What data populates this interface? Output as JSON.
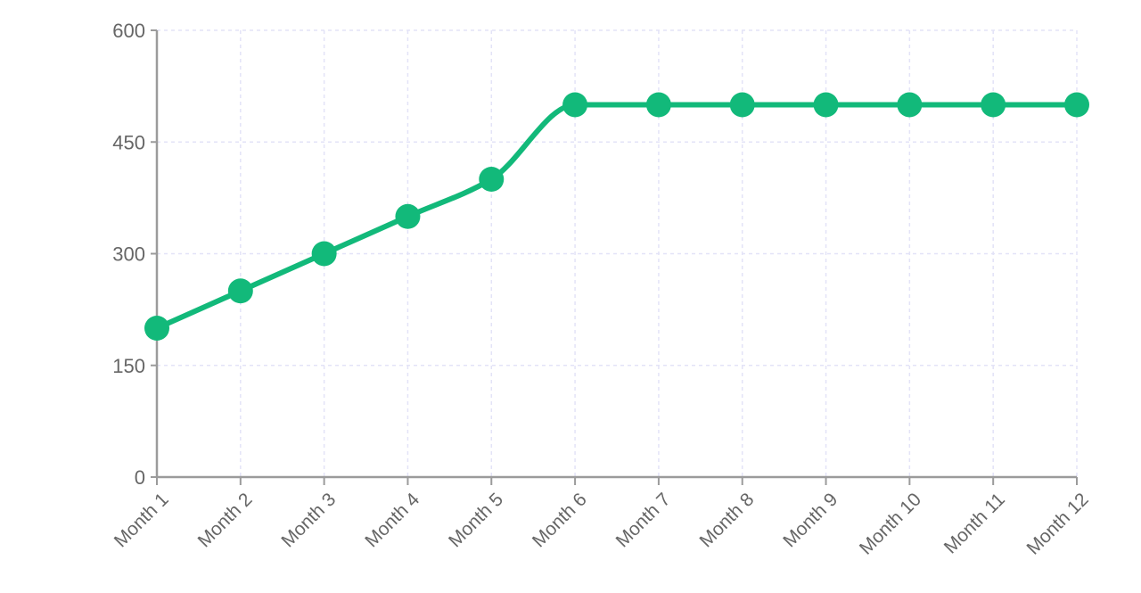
{
  "chart_data": {
    "type": "line",
    "title": "",
    "xlabel": "",
    "ylabel": "",
    "categories": [
      "Month 1",
      "Month 2",
      "Month 3",
      "Month 4",
      "Month 5",
      "Month 6",
      "Month 7",
      "Month 8",
      "Month 9",
      "Month 10",
      "Month 11",
      "Month 12"
    ],
    "series": [
      {
        "color": "#12b97a",
        "values": [
          200,
          250,
          300,
          350,
          400,
          500,
          500,
          500,
          500,
          500,
          500,
          500
        ]
      }
    ],
    "ylim": [
      0,
      600
    ],
    "yticks": [
      0,
      150,
      300,
      450,
      600
    ],
    "ytick_labels": [
      "0",
      "150",
      "300",
      "450",
      "600"
    ],
    "grid": true,
    "smooth": true,
    "markers": true
  }
}
